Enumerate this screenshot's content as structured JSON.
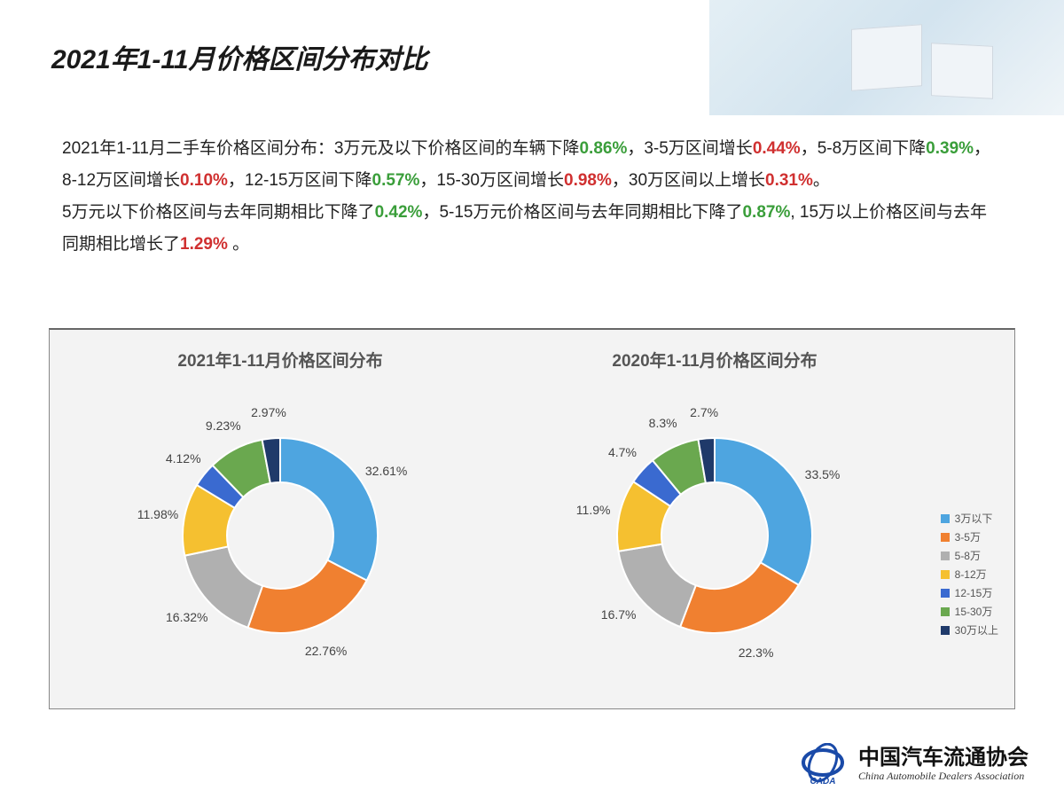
{
  "title": "2021年1-11月价格区间分布对比",
  "paragraph": {
    "line1_prefix": "2021年1-11月二手车价格区间分布：3万元及以下价格区间的车辆下降",
    "p1": "0.86%",
    "t1": "，3-5万区间增长",
    "p2": "0.44%",
    "t2": "，5-8万区间下降",
    "p3": "0.39%",
    "t3": "，8-12万区间增长",
    "p4": "0.10%",
    "t4": "，12-15万区间下降",
    "p5": "0.57%",
    "t5": "，15-30万区间增长",
    "p6": "0.98%",
    "t6": "，30万区间以上增长",
    "p7": "0.31%",
    "t7": "。",
    "line2_prefix": "5万元以下价格区间与去年同期相比下降了",
    "q1": "0.42%",
    "u1": "，5-15万元价格区间与去年同期相比下降了",
    "q2": "0.87%",
    "u2": ", 15万以上价格区间与去年同期相比增长了",
    "q3": "1.29%",
    "u3": " 。"
  },
  "colors": {
    "green": "#3a9e3a",
    "red": "#d03030",
    "panel_bg": "#f3f3f3",
    "panel_border": "#888888"
  },
  "legend": [
    {
      "label": "3万以下",
      "color": "#4ea5e0"
    },
    {
      "label": "3-5万",
      "color": "#f08030"
    },
    {
      "label": "5-8万",
      "color": "#b0b0b0"
    },
    {
      "label": "8-12万",
      "color": "#f5c030"
    },
    {
      "label": "12-15万",
      "color": "#3a6ad0"
    },
    {
      "label": "15-30万",
      "color": "#6aa84f"
    },
    {
      "label": "30万以上",
      "color": "#1f3a6a"
    }
  ],
  "chart_left": {
    "title": "2021年1-11月价格区间分布",
    "type": "donut",
    "inner_radius": 60,
    "outer_radius": 110,
    "label_radius": 140,
    "start_angle": -90,
    "slices": [
      {
        "value": 32.61,
        "label": "32.61%",
        "color": "#4ea5e0"
      },
      {
        "value": 22.76,
        "label": "22.76%",
        "color": "#f08030"
      },
      {
        "value": 16.32,
        "label": "16.32%",
        "color": "#b0b0b0"
      },
      {
        "value": 11.98,
        "label": "11.98%",
        "color": "#f5c030"
      },
      {
        "value": 4.12,
        "label": "4.12%",
        "color": "#3a6ad0"
      },
      {
        "value": 9.23,
        "label": "9.23%",
        "color": "#6aa84f"
      },
      {
        "value": 2.97,
        "label": "2.97%",
        "color": "#1f3a6a"
      }
    ]
  },
  "chart_right": {
    "title": "2020年1-11月价格区间分布",
    "type": "donut",
    "inner_radius": 60,
    "outer_radius": 110,
    "label_radius": 140,
    "start_angle": -90,
    "slices": [
      {
        "value": 33.5,
        "label": "33.5%",
        "color": "#4ea5e0"
      },
      {
        "value": 22.3,
        "label": "22.3%",
        "color": "#f08030"
      },
      {
        "value": 16.7,
        "label": "16.7%",
        "color": "#b0b0b0"
      },
      {
        "value": 11.9,
        "label": "11.9%",
        "color": "#f5c030"
      },
      {
        "value": 4.7,
        "label": "4.7%",
        "color": "#3a6ad0"
      },
      {
        "value": 8.3,
        "label": "8.3%",
        "color": "#6aa84f"
      },
      {
        "value": 2.7,
        "label": "2.7%",
        "color": "#1f3a6a"
      }
    ]
  },
  "footer": {
    "logo_text": "CADA",
    "cn": "中国汽车流通协会",
    "en": "China Automobile Dealers Association"
  }
}
